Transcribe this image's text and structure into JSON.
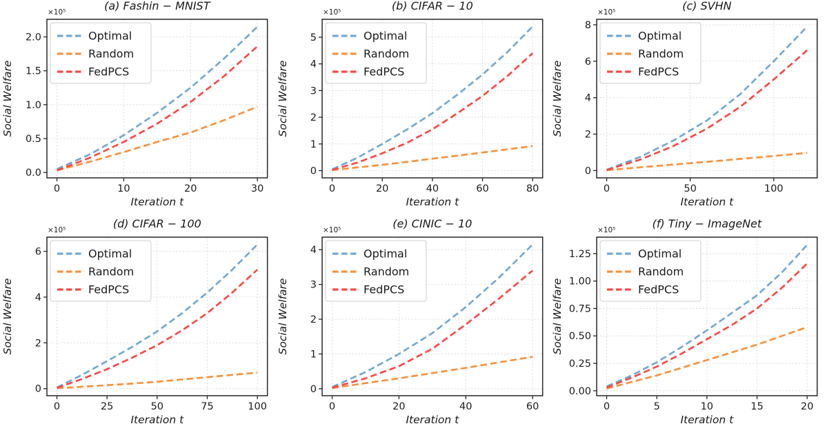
{
  "figure": {
    "background": "#ffffff",
    "text_color": "#1a1a1a",
    "grid_color": "#d9d9d9",
    "spine_color": "#262626",
    "ylabel": "Social Welfare",
    "xlabel": "Iteration t",
    "offset_text": "×10⁵",
    "legend": {
      "position": "upper-left",
      "entries": [
        "Optimal",
        "Random",
        "FedPCS"
      ]
    },
    "colors": {
      "Optimal": "#73a8d2",
      "Random": "#f8913c",
      "FedPCS": "#f94843"
    }
  },
  "chart_data": [
    {
      "id": "a",
      "type": "line",
      "title": "(a) Fashin − MNIST",
      "xlabel": "Iteration t",
      "ylabel": "Social Welfare",
      "offset_text": "×10⁵",
      "unit_scale": "1e5",
      "grid": true,
      "legend": true,
      "legend_position": "upper-left",
      "xlim": [
        -1.5,
        31.5
      ],
      "ylim": [
        -0.08,
        2.26
      ],
      "xticks": [
        0,
        10,
        20,
        30
      ],
      "xtick_labels": [
        "0",
        "10",
        "20",
        "30"
      ],
      "yticks": [
        0,
        0.5,
        1,
        1.5,
        2
      ],
      "ytick_labels": [
        "0.0",
        "0.5",
        "1.0",
        "1.5",
        "2.0"
      ],
      "x": [
        0,
        5,
        10,
        15,
        20,
        25,
        30
      ],
      "series": [
        {
          "name": "Optimal",
          "color": "#73a8d2",
          "values": [
            0.05,
            0.27,
            0.55,
            0.88,
            1.25,
            1.68,
            2.15
          ]
        },
        {
          "name": "Random",
          "color": "#f8913c",
          "values": [
            0.03,
            0.16,
            0.3,
            0.45,
            0.59,
            0.77,
            0.97
          ]
        },
        {
          "name": "FedPCS",
          "color": "#f94843",
          "values": [
            0.03,
            0.22,
            0.45,
            0.72,
            1.04,
            1.42,
            1.86
          ]
        }
      ]
    },
    {
      "id": "b",
      "type": "line",
      "title": "(b) CIFAR − 10",
      "xlabel": "Iteration t",
      "ylabel": "Social Welfare",
      "offset_text": "×10⁵",
      "unit_scale": "1e5",
      "grid": true,
      "legend": true,
      "legend_position": "upper-left",
      "xlim": [
        -4,
        84
      ],
      "ylim": [
        -0.27,
        5.67
      ],
      "xticks": [
        0,
        20,
        40,
        60,
        80
      ],
      "xtick_labels": [
        "0",
        "20",
        "40",
        "60",
        "80"
      ],
      "yticks": [
        0,
        1,
        2,
        3,
        4,
        5
      ],
      "ytick_labels": [
        "0",
        "1",
        "2",
        "3",
        "4",
        "5"
      ],
      "x": [
        0,
        10,
        20,
        30,
        40,
        50,
        60,
        70,
        80
      ],
      "series": [
        {
          "name": "Optimal",
          "color": "#73a8d2",
          "values": [
            0.05,
            0.48,
            1.0,
            1.55,
            2.15,
            2.85,
            3.6,
            4.45,
            5.4
          ]
        },
        {
          "name": "Random",
          "color": "#f8913c",
          "values": [
            0.02,
            0.12,
            0.22,
            0.33,
            0.45,
            0.56,
            0.68,
            0.8,
            0.92
          ]
        },
        {
          "name": "FedPCS",
          "color": "#f94843",
          "values": [
            0.03,
            0.3,
            0.65,
            1.05,
            1.55,
            2.15,
            2.8,
            3.55,
            4.4
          ]
        }
      ]
    },
    {
      "id": "c",
      "type": "line",
      "title": "(c) SVHN",
      "xlabel": "Iteration t",
      "ylabel": "Social Welfare",
      "offset_text": "×10⁵",
      "unit_scale": "1e5",
      "grid": true,
      "legend": true,
      "legend_position": "upper-left",
      "xlim": [
        -6,
        126
      ],
      "ylim": [
        -0.4,
        8.3
      ],
      "xticks": [
        0,
        50,
        100
      ],
      "xtick_labels": [
        "0",
        "50",
        "100"
      ],
      "yticks": [
        0,
        2,
        4,
        6,
        8
      ],
      "ytick_labels": [
        "0",
        "2",
        "4",
        "6",
        "8"
      ],
      "x": [
        0,
        20,
        40,
        60,
        80,
        100,
        120
      ],
      "series": [
        {
          "name": "Optimal",
          "color": "#73a8d2",
          "values": [
            0.05,
            0.75,
            1.65,
            2.75,
            4.2,
            6.0,
            7.9
          ]
        },
        {
          "name": "Random",
          "color": "#f8913c",
          "values": [
            0.02,
            0.18,
            0.33,
            0.48,
            0.64,
            0.8,
            0.97
          ]
        },
        {
          "name": "FedPCS",
          "color": "#f94843",
          "values": [
            0.03,
            0.6,
            1.35,
            2.3,
            3.5,
            5.0,
            6.6
          ]
        }
      ]
    },
    {
      "id": "d",
      "type": "line",
      "title": "(d) CIFAR − 100",
      "xlabel": "Iteration t",
      "ylabel": "Social Welfare",
      "offset_text": "×10⁵",
      "unit_scale": "1e5",
      "grid": true,
      "legend": true,
      "legend_position": "upper-left",
      "xlim": [
        -5,
        105
      ],
      "ylim": [
        -0.31,
        6.62
      ],
      "xticks": [
        0,
        25,
        50,
        75,
        100
      ],
      "xtick_labels": [
        "0",
        "25",
        "50",
        "75",
        "100"
      ],
      "yticks": [
        0,
        2,
        4,
        6
      ],
      "ytick_labels": [
        "0",
        "2",
        "4",
        "6"
      ],
      "x": [
        0,
        12.5,
        25,
        37.5,
        50,
        62.5,
        75,
        87.5,
        100
      ],
      "series": [
        {
          "name": "Optimal",
          "color": "#73a8d2",
          "values": [
            0.05,
            0.6,
            1.2,
            1.82,
            2.5,
            3.3,
            4.2,
            5.2,
            6.3
          ]
        },
        {
          "name": "Random",
          "color": "#f8913c",
          "values": [
            0.02,
            0.08,
            0.15,
            0.22,
            0.3,
            0.4,
            0.5,
            0.6,
            0.7
          ]
        },
        {
          "name": "FedPCS",
          "color": "#f94843",
          "values": [
            0.03,
            0.42,
            0.85,
            1.35,
            1.9,
            2.55,
            3.3,
            4.2,
            5.2
          ]
        }
      ]
    },
    {
      "id": "e",
      "type": "line",
      "title": "(e) CINIC − 10",
      "xlabel": "Iteration t",
      "ylabel": "Social Welfare",
      "offset_text": "×10⁵",
      "unit_scale": "1e5",
      "grid": true,
      "legend": true,
      "legend_position": "upper-left",
      "xlim": [
        -3,
        63
      ],
      "ylim": [
        -0.2,
        4.36
      ],
      "xticks": [
        0,
        20,
        40,
        60
      ],
      "xtick_labels": [
        "0",
        "20",
        "40",
        "60"
      ],
      "yticks": [
        0,
        1,
        2,
        3,
        4
      ],
      "ytick_labels": [
        "0",
        "1",
        "2",
        "3",
        "4"
      ],
      "x": [
        0,
        10,
        20,
        30,
        40,
        50,
        60
      ],
      "series": [
        {
          "name": "Optimal",
          "color": "#73a8d2",
          "values": [
            0.05,
            0.48,
            1.0,
            1.6,
            2.35,
            3.2,
            4.15
          ]
        },
        {
          "name": "Random",
          "color": "#f8913c",
          "values": [
            0.02,
            0.16,
            0.3,
            0.45,
            0.6,
            0.76,
            0.92
          ]
        },
        {
          "name": "FedPCS",
          "color": "#f94843",
          "values": [
            0.03,
            0.3,
            0.65,
            1.15,
            1.85,
            2.6,
            3.4
          ]
        }
      ]
    },
    {
      "id": "f",
      "type": "line",
      "title": "(f) Tiny − ImageNet",
      "xlabel": "Iteration t",
      "ylabel": "Social Welfare",
      "offset_text": "×10⁵",
      "unit_scale": "1e5",
      "grid": true,
      "legend": true,
      "legend_position": "upper-left",
      "xlim": [
        -1,
        21
      ],
      "ylim": [
        -0.045,
        1.4
      ],
      "xticks": [
        0,
        5,
        10,
        15,
        20
      ],
      "xtick_labels": [
        "0",
        "5",
        "10",
        "15",
        "20"
      ],
      "yticks": [
        0,
        0.25,
        0.5,
        0.75,
        1,
        1.25
      ],
      "ytick_labels": [
        "0.00",
        "0.25",
        "0.50",
        "0.75",
        "1.00",
        "1.25"
      ],
      "x": [
        0,
        2.5,
        5,
        7.5,
        10,
        12.5,
        15,
        17.5,
        20
      ],
      "series": [
        {
          "name": "Optimal",
          "color": "#73a8d2",
          "values": [
            0.04,
            0.14,
            0.26,
            0.4,
            0.55,
            0.71,
            0.87,
            1.08,
            1.33
          ]
        },
        {
          "name": "Random",
          "color": "#f8913c",
          "values": [
            0.02,
            0.08,
            0.14,
            0.21,
            0.28,
            0.35,
            0.42,
            0.5,
            0.58
          ]
        },
        {
          "name": "FedPCS",
          "color": "#f94843",
          "values": [
            0.03,
            0.12,
            0.22,
            0.34,
            0.47,
            0.6,
            0.75,
            0.94,
            1.16
          ]
        }
      ]
    }
  ]
}
